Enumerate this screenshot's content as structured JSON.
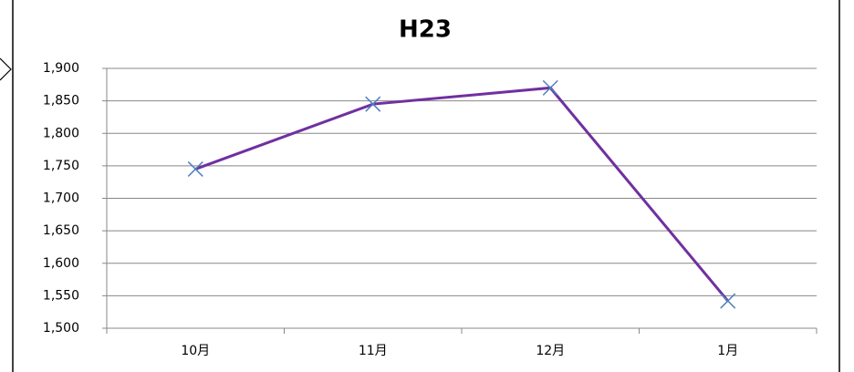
{
  "chart_data": {
    "type": "line",
    "title": "H23",
    "categories": [
      "10月",
      "11月",
      "12月",
      "1月"
    ],
    "values": [
      1745,
      1845,
      1870,
      1542
    ],
    "color": "#7030a0",
    "marker_color": "#4f81bd",
    "marker": "x",
    "ylim": [
      1500,
      1900
    ],
    "yticks": [
      {
        "value": 1500,
        "label": "1,500"
      },
      {
        "value": 1550,
        "label": "1,550"
      },
      {
        "value": 1600,
        "label": "1,600"
      },
      {
        "value": 1650,
        "label": "1,650"
      },
      {
        "value": 1700,
        "label": "1,700"
      },
      {
        "value": 1750,
        "label": "1,750"
      },
      {
        "value": 1800,
        "label": "1,800"
      },
      {
        "value": 1850,
        "label": "1,850"
      },
      {
        "value": 1900,
        "label": "1,900"
      }
    ],
    "grid": true
  }
}
